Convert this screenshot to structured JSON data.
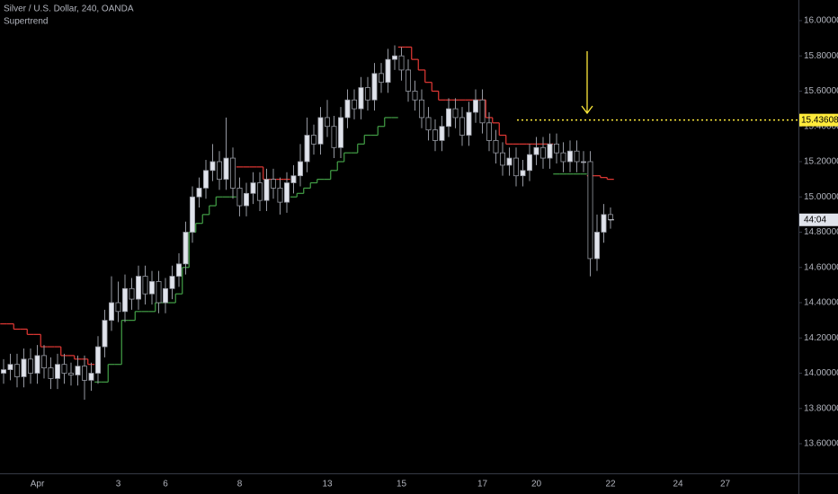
{
  "chart_data": {
    "type": "candlestick",
    "title": "Silver / U.S. Dollar, 240, OANDA",
    "categories": [
      null,
      null,
      null,
      null,
      null,
      "Apr",
      null,
      null,
      null,
      null,
      null,
      null,
      null,
      null,
      null,
      null,
      null,
      "3",
      null,
      null,
      null,
      null,
      null,
      null,
      "6",
      null,
      null,
      null,
      null,
      null,
      null,
      null,
      null,
      null,
      null,
      "8",
      null,
      null,
      null,
      null,
      null,
      null,
      null,
      null,
      null,
      null,
      null,
      null,
      "13",
      null,
      null,
      null,
      null,
      null,
      null,
      null,
      null,
      null,
      null,
      "15",
      null,
      null,
      null,
      null,
      null,
      null,
      null,
      null,
      null,
      null,
      null,
      "17",
      null,
      null,
      null,
      null,
      null,
      null,
      null,
      "20",
      null,
      null,
      null,
      null,
      null,
      null,
      null,
      null,
      null,
      null,
      "22",
      null,
      null,
      null,
      null,
      null,
      null,
      null,
      null,
      null,
      "24",
      null,
      null,
      null,
      null,
      null,
      null,
      "27",
      null,
      null,
      null
    ],
    "open": [
      14.0,
      14.02,
      14.05,
      13.98,
      14.08,
      14.0,
      14.1,
      14.03,
      13.97,
      14.05,
      14.0,
      13.99,
      14.04,
      13.96,
      14.0,
      14.15,
      14.3,
      14.4,
      14.35,
      14.48,
      14.42,
      14.55,
      14.45,
      14.52,
      14.4,
      14.48,
      14.55,
      14.62,
      14.8,
      15.0,
      15.05,
      15.15,
      15.2,
      15.1,
      15.22,
      15.05,
      14.95,
      15.02,
      15.08,
      14.98,
      15.1,
      15.05,
      14.97,
      15.08,
      15.12,
      15.2,
      15.35,
      15.3,
      15.45,
      15.4,
      15.28,
      15.45,
      15.55,
      15.5,
      15.62,
      15.55,
      15.7,
      15.65,
      15.78,
      15.8,
      15.72,
      15.6,
      15.55,
      15.45,
      15.38,
      15.32,
      15.4,
      15.5,
      15.45,
      15.35,
      15.48,
      15.55,
      15.42,
      15.32,
      15.25,
      15.18,
      15.22,
      15.12,
      15.15,
      15.24,
      15.28,
      15.22,
      15.3,
      15.25,
      15.2,
      15.26,
      15.2,
      15.2,
      14.65,
      14.8,
      14.9,
      null,
      null,
      null,
      null,
      null,
      null,
      null,
      null,
      null,
      null,
      null,
      null,
      null,
      null,
      null,
      null,
      null,
      null,
      null,
      null
    ],
    "high": [
      14.08,
      14.11,
      14.11,
      14.14,
      14.14,
      14.16,
      14.16,
      14.09,
      14.11,
      14.11,
      14.06,
      14.1,
      14.1,
      14.06,
      14.21,
      14.36,
      14.55,
      14.52,
      14.56,
      14.54,
      14.61,
      14.61,
      14.58,
      14.58,
      14.54,
      14.61,
      14.68,
      14.86,
      15.06,
      15.11,
      15.21,
      15.3,
      15.26,
      15.45,
      15.28,
      15.11,
      15.08,
      15.14,
      15.14,
      15.16,
      15.16,
      15.11,
      15.14,
      15.18,
      15.3,
      15.45,
      15.41,
      15.51,
      15.55,
      15.46,
      15.51,
      15.61,
      15.61,
      15.68,
      15.68,
      15.76,
      15.76,
      15.84,
      15.86,
      15.85,
      15.78,
      15.66,
      15.61,
      15.51,
      15.44,
      15.46,
      15.56,
      15.56,
      15.51,
      15.54,
      15.61,
      15.61,
      15.48,
      15.38,
      15.31,
      15.28,
      15.28,
      15.21,
      15.3,
      15.34,
      15.34,
      15.36,
      15.36,
      15.31,
      15.32,
      15.32,
      15.26,
      15.26,
      14.9,
      14.96,
      14.94,
      null,
      null,
      null,
      null,
      null,
      null,
      null,
      null,
      null,
      null,
      null,
      null,
      null,
      null,
      null,
      null,
      null,
      null,
      null,
      null
    ],
    "low": [
      13.94,
      13.96,
      13.92,
      13.92,
      13.94,
      13.94,
      13.97,
      13.91,
      13.91,
      13.94,
      13.93,
      13.93,
      13.85,
      13.9,
      13.94,
      14.09,
      14.24,
      14.29,
      14.29,
      14.36,
      14.36,
      14.39,
      14.39,
      14.34,
      14.34,
      14.42,
      14.49,
      14.56,
      14.74,
      14.94,
      14.99,
      15.09,
      15.04,
      15.04,
      14.99,
      14.89,
      14.89,
      14.96,
      14.92,
      14.92,
      14.99,
      14.9,
      14.91,
      15.02,
      15.06,
      15.14,
      15.24,
      15.24,
      15.34,
      15.22,
      15.22,
      15.39,
      15.44,
      15.44,
      15.49,
      15.49,
      15.59,
      15.59,
      15.72,
      15.66,
      15.54,
      15.49,
      15.39,
      15.32,
      15.26,
      15.26,
      15.34,
      15.39,
      15.29,
      15.29,
      15.42,
      15.36,
      15.26,
      15.19,
      15.12,
      15.12,
      15.06,
      15.06,
      15.09,
      15.18,
      15.16,
      15.16,
      15.19,
      15.14,
      15.14,
      15.14,
      15.14,
      14.55,
      14.58,
      14.74,
      14.82,
      null,
      null,
      null,
      null,
      null,
      null,
      null,
      null,
      null,
      null,
      null,
      null,
      null,
      null,
      null,
      null,
      null,
      null,
      null,
      null
    ],
    "close": [
      14.02,
      14.05,
      13.98,
      14.08,
      14.0,
      14.1,
      14.03,
      13.97,
      14.05,
      14.0,
      13.99,
      14.04,
      13.96,
      14.0,
      14.15,
      14.3,
      14.4,
      14.35,
      14.48,
      14.42,
      14.55,
      14.45,
      14.52,
      14.4,
      14.48,
      14.55,
      14.62,
      14.8,
      15.0,
      15.05,
      15.15,
      15.2,
      15.1,
      15.22,
      15.05,
      14.95,
      15.02,
      15.08,
      14.98,
      15.1,
      15.05,
      14.97,
      15.08,
      15.12,
      15.2,
      15.35,
      15.3,
      15.45,
      15.4,
      15.28,
      15.45,
      15.55,
      15.5,
      15.62,
      15.55,
      15.7,
      15.65,
      15.78,
      15.8,
      15.72,
      15.6,
      15.55,
      15.45,
      15.38,
      15.32,
      15.4,
      15.5,
      15.45,
      15.35,
      15.48,
      15.55,
      15.42,
      15.32,
      15.25,
      15.18,
      15.22,
      15.12,
      15.15,
      15.24,
      15.28,
      15.22,
      15.3,
      15.25,
      15.2,
      15.26,
      15.2,
      15.2,
      14.65,
      14.8,
      14.9,
      14.87,
      null,
      null,
      null,
      null,
      null,
      null,
      null,
      null,
      null,
      null,
      null,
      null,
      null,
      null,
      null,
      null,
      null,
      null,
      null,
      null
    ],
    "up_color": "#e0e3eb",
    "down_color": "#000000",
    "wick_color": "#9598a1",
    "supertrend": {
      "name": "Supertrend",
      "down": {
        "color": "#e53935",
        "values": [
          14.28,
          14.28,
          14.25,
          14.25,
          14.22,
          14.22,
          14.15,
          14.15,
          14.15,
          14.1,
          14.1,
          14.08,
          14.08,
          14.05,
          null,
          null,
          null,
          null,
          null,
          null,
          null,
          null,
          null,
          null,
          null,
          null,
          null,
          null,
          null,
          null,
          null,
          null,
          null,
          null,
          null,
          15.17,
          15.17,
          15.17,
          15.17,
          15.1,
          15.1,
          15.1,
          15.1,
          null,
          null,
          null,
          null,
          null,
          null,
          null,
          null,
          null,
          null,
          null,
          null,
          null,
          null,
          null,
          null,
          15.85,
          15.85,
          15.78,
          15.72,
          15.65,
          15.6,
          15.55,
          15.55,
          15.55,
          15.55,
          15.55,
          15.55,
          15.55,
          15.45,
          15.42,
          15.35,
          15.3,
          15.3,
          15.3,
          15.3,
          15.3,
          15.3,
          15.3,
          null,
          null,
          null,
          null,
          null,
          15.12,
          15.12,
          15.11,
          15.1,
          null,
          null,
          null,
          null,
          null,
          null,
          null,
          null,
          null,
          null,
          null,
          null,
          null,
          null,
          null,
          null,
          null,
          null,
          null,
          null
        ]
      },
      "up": {
        "color": "#43a047",
        "values": [
          null,
          null,
          null,
          null,
          null,
          null,
          null,
          null,
          null,
          null,
          null,
          null,
          null,
          null,
          13.95,
          13.95,
          14.05,
          14.05,
          14.3,
          14.3,
          14.35,
          14.35,
          14.35,
          14.4,
          14.4,
          14.4,
          14.45,
          14.6,
          14.8,
          14.85,
          14.9,
          14.95,
          15.0,
          15.0,
          15.0,
          null,
          null,
          null,
          null,
          null,
          null,
          null,
          null,
          15.0,
          15.02,
          15.05,
          15.08,
          15.1,
          15.1,
          15.15,
          15.2,
          15.25,
          15.25,
          15.3,
          15.35,
          15.35,
          15.4,
          15.45,
          15.45,
          null,
          null,
          null,
          null,
          null,
          null,
          null,
          null,
          null,
          null,
          null,
          null,
          null,
          null,
          null,
          null,
          null,
          null,
          null,
          null,
          null,
          null,
          null,
          15.13,
          15.13,
          15.13,
          15.13,
          15.13,
          null,
          null,
          null,
          null,
          null,
          null,
          null,
          null,
          null,
          null,
          null,
          null,
          null,
          null,
          null,
          null,
          null,
          null,
          null,
          null,
          null,
          null,
          null,
          null
        ]
      }
    },
    "hline": {
      "value": 15.43608,
      "color": "#ffeb3b"
    },
    "countdown": "44:04",
    "ylim": [
      13.432,
      16.117
    ],
    "yticks": [
      {
        "value": 13.6,
        "label": "13.60000"
      },
      {
        "value": 13.8,
        "label": "13.80000"
      },
      {
        "value": 14,
        "label": "14.00000"
      },
      {
        "value": 14.2,
        "label": "14.20000"
      },
      {
        "value": 14.4,
        "label": "14.40000"
      },
      {
        "value": 14.6,
        "label": "14.60000"
      },
      {
        "value": 14.8,
        "label": "14.80000"
      },
      {
        "value": 15,
        "label": "15.00000"
      },
      {
        "value": 15.2,
        "label": "15.20000"
      },
      {
        "value": 15.4,
        "label": "15.40000"
      },
      {
        "value": 15.6,
        "label": "15.60000"
      },
      {
        "value": 15.8,
        "label": "15.80000"
      },
      {
        "value": 16,
        "label": "16.00000"
      }
    ],
    "grid": false
  }
}
